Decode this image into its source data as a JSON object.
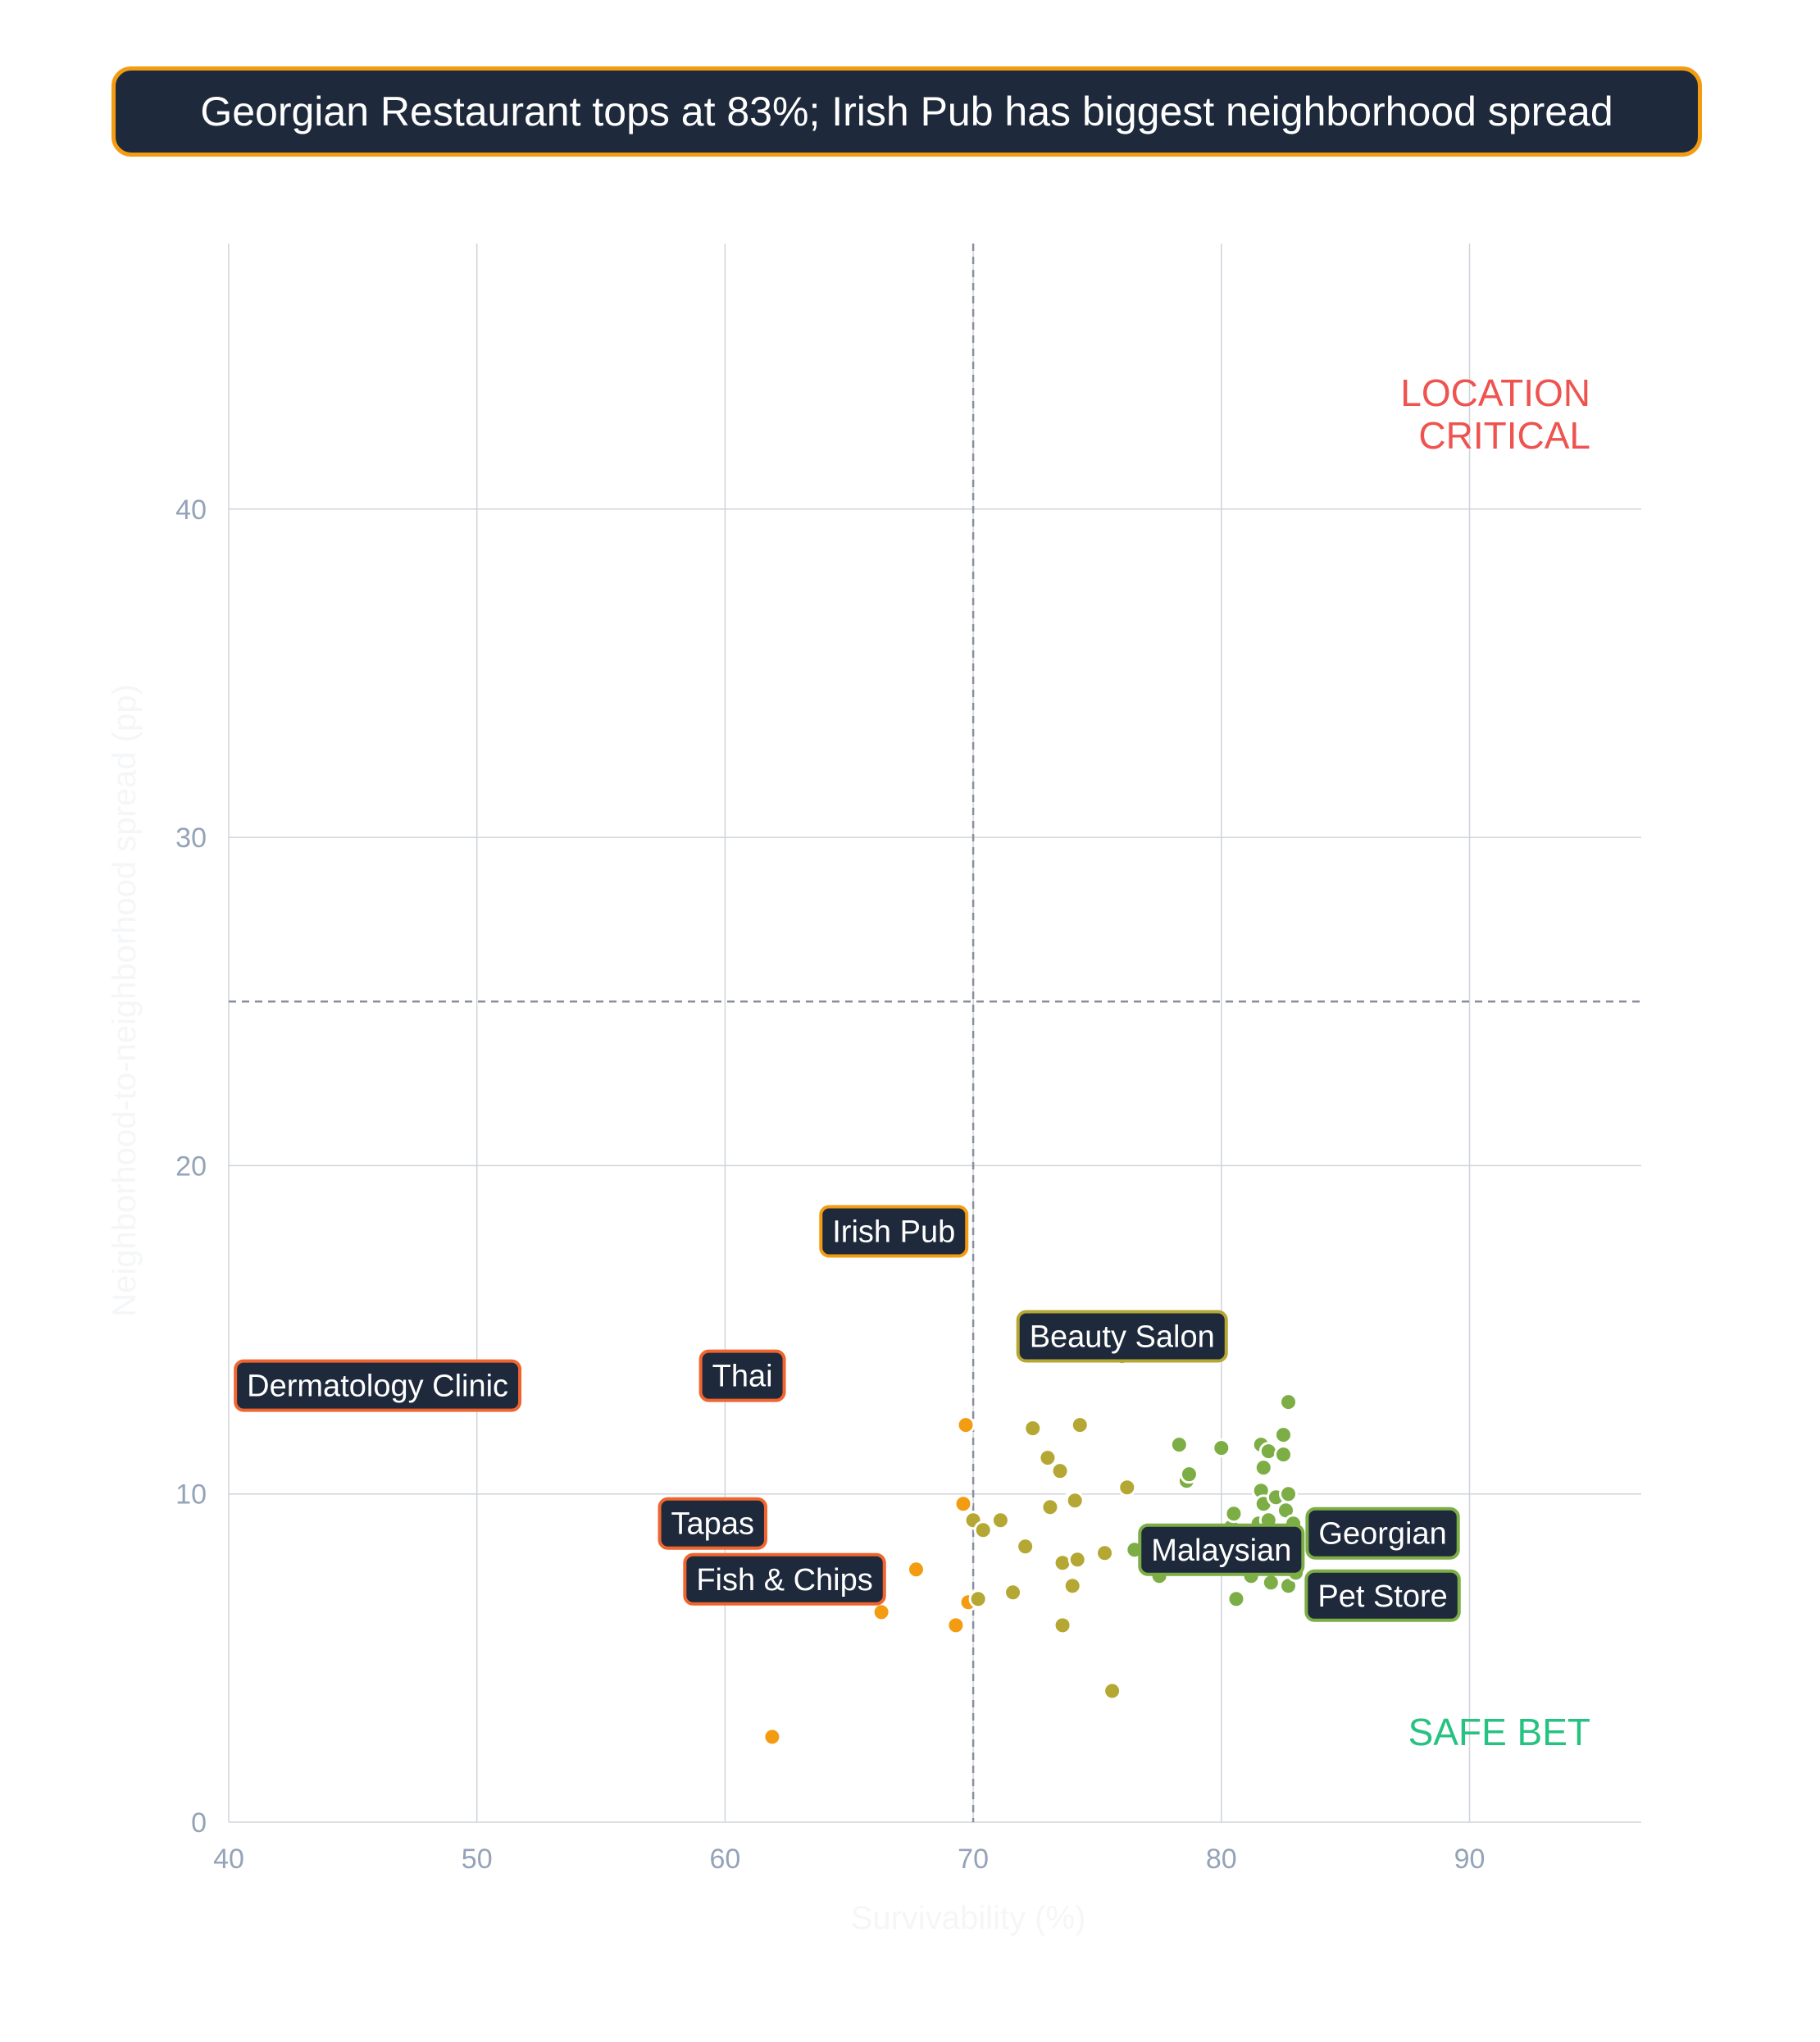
{
  "title": "Georgian Restaurant tops at 83%; Irish Pub has biggest neighborhood spread",
  "colors": {
    "title_bg": "#1e293b",
    "title_border": "#f39c12",
    "grid": "#cfd3da",
    "reference_line": "#8a8fa0",
    "tick_text": "#94a3b8",
    "location_critical": "#ef5350",
    "safe_bet": "#26c281",
    "low_survival": "#f39c12",
    "mid_survival": "#b5a733",
    "high_survival": "#7cae45",
    "callout_bg": "#1e293b"
  },
  "chart_data": {
    "type": "scatter",
    "xlabel": "Survivability (%)",
    "ylabel": "Neighborhood-to-neighborhood spread (pp)",
    "xlim": [
      40,
      97
    ],
    "ylim": [
      0,
      48
    ],
    "x_ticks": [
      40,
      50,
      60,
      70,
      80,
      90
    ],
    "y_ticks": [
      0,
      10,
      20,
      30,
      40
    ],
    "grid": true,
    "reference_lines": {
      "x": 70,
      "y": 25
    },
    "quadrant_labels": [
      {
        "text": [
          "LOCATION",
          "CRITICAL"
        ],
        "position": "top-right",
        "color": "#ef5350"
      },
      {
        "text": [
          "SAFE BET"
        ],
        "position": "bottom-right",
        "color": "#26c281"
      }
    ],
    "annotations": [
      {
        "label": "Irish Pub",
        "x": 66.8,
        "y": 18.0,
        "border": "#f39c12"
      },
      {
        "label": "Beauty Salon",
        "x": 76.0,
        "y": 14.8,
        "border": "#b5a733"
      },
      {
        "label": "Dermatology Clinic",
        "x": 46.0,
        "y": 13.3,
        "border": "#f0652f"
      },
      {
        "label": "Thai",
        "x": 60.7,
        "y": 13.6,
        "border": "#f0652f"
      },
      {
        "label": "Tapas",
        "x": 59.5,
        "y": 9.1,
        "border": "#f0652f"
      },
      {
        "label": "Fish & Chips",
        "x": 62.4,
        "y": 7.4,
        "border": "#f0652f"
      },
      {
        "label": "Malaysian",
        "x": 80.0,
        "y": 8.3,
        "border": "#7cae45"
      },
      {
        "label": "Georgian",
        "x": 86.5,
        "y": 8.8,
        "border": "#7cae45"
      },
      {
        "label": "Pet Store",
        "x": 86.5,
        "y": 6.9,
        "border": "#7cae45"
      }
    ],
    "points": [
      [
        61.9,
        2.6
      ],
      [
        66.3,
        6.4
      ],
      [
        67.7,
        7.7
      ],
      [
        69.3,
        6.0
      ],
      [
        69.6,
        9.7
      ],
      [
        69.7,
        12.1
      ],
      [
        69.8,
        6.7
      ],
      [
        70.0,
        9.2
      ],
      [
        70.2,
        6.8
      ],
      [
        70.4,
        8.9
      ],
      [
        71.1,
        9.2
      ],
      [
        71.6,
        7.0
      ],
      [
        72.1,
        8.4
      ],
      [
        72.4,
        12.0
      ],
      [
        73.0,
        11.1
      ],
      [
        73.1,
        9.6
      ],
      [
        73.5,
        10.7
      ],
      [
        73.6,
        7.9
      ],
      [
        73.6,
        6.0
      ],
      [
        74.0,
        9.8
      ],
      [
        74.0,
        7.2
      ],
      [
        74.1,
        9.8
      ],
      [
        74.2,
        8.0
      ],
      [
        74.3,
        12.1
      ],
      [
        75.3,
        8.2
      ],
      [
        75.6,
        4.0
      ],
      [
        76.0,
        14.2
      ],
      [
        76.2,
        10.2
      ],
      [
        76.5,
        8.3
      ],
      [
        77.5,
        7.5
      ],
      [
        78.3,
        11.5
      ],
      [
        78.6,
        10.4
      ],
      [
        78.7,
        10.6
      ],
      [
        80.0,
        11.4
      ],
      [
        80.4,
        9.0
      ],
      [
        80.5,
        9.4
      ],
      [
        80.6,
        6.8
      ],
      [
        81.0,
        8.7
      ],
      [
        81.2,
        7.5
      ],
      [
        81.4,
        8.0
      ],
      [
        81.5,
        9.1
      ],
      [
        81.6,
        11.5
      ],
      [
        81.6,
        10.1
      ],
      [
        81.7,
        10.8
      ],
      [
        81.7,
        9.7
      ],
      [
        81.8,
        8.5
      ],
      [
        81.9,
        9.2
      ],
      [
        81.9,
        11.3
      ],
      [
        82.0,
        7.3
      ],
      [
        82.1,
        8.1
      ],
      [
        82.2,
        9.9
      ],
      [
        82.3,
        8.8
      ],
      [
        82.4,
        7.8
      ],
      [
        82.5,
        11.2
      ],
      [
        82.5,
        11.8
      ],
      [
        82.6,
        9.5
      ],
      [
        82.7,
        7.2
      ],
      [
        82.7,
        12.8
      ],
      [
        82.7,
        10.0
      ],
      [
        82.8,
        8.4
      ],
      [
        82.9,
        9.1
      ],
      [
        83.0,
        7.6
      ]
    ]
  }
}
